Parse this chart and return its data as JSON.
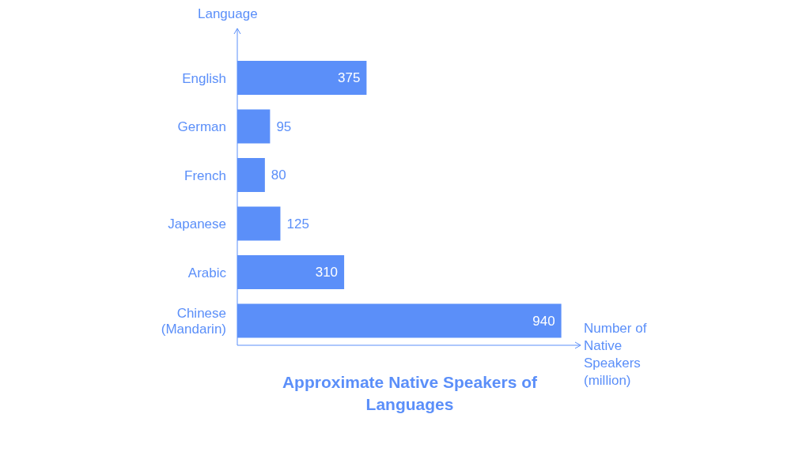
{
  "chart_data": {
    "type": "bar",
    "orientation": "horizontal",
    "title": "Approximate Native Speakers of Languages",
    "xlabel": "Number of Native Speakers (million)",
    "ylabel": "Language",
    "categories": [
      "English",
      "German",
      "French",
      "Japanese",
      "Arabic",
      "Chinese (Mandarin)"
    ],
    "values": [
      375,
      95,
      80,
      125,
      310,
      940
    ],
    "color": "#5b8ff9",
    "data_labels": true
  }
}
